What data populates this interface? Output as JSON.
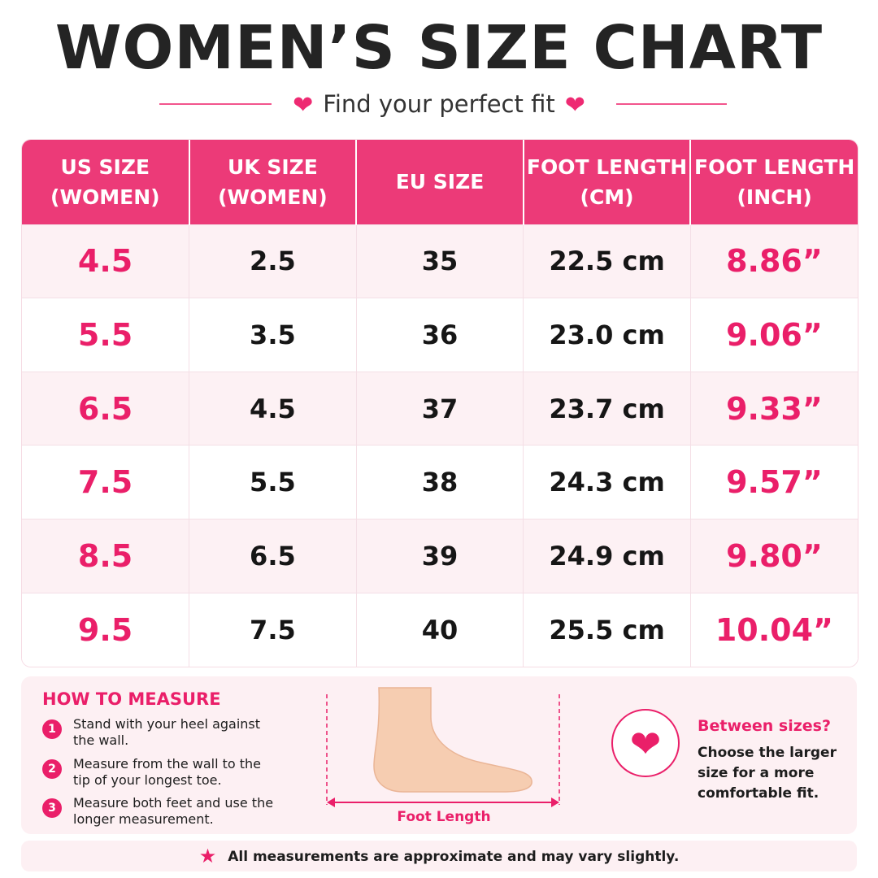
{
  "header": {
    "title": "WOMEN’S SIZE CHART",
    "subtitle": "Find your perfect fit"
  },
  "table": {
    "columns": [
      [
        "US SIZE",
        "(WOMEN)"
      ],
      [
        "UK SIZE",
        "(WOMEN)"
      ],
      [
        "EU SIZE",
        ""
      ],
      [
        "FOOT LENGTH",
        "(CM)"
      ],
      [
        "FOOT LENGTH",
        "(INCH)"
      ]
    ],
    "rows": [
      [
        "4.5",
        "2.5",
        "35",
        "22.5 cm",
        "8.86”"
      ],
      [
        "5.5",
        "3.5",
        "36",
        "23.0 cm",
        "9.06”"
      ],
      [
        "6.5",
        "4.5",
        "37",
        "23.7 cm",
        "9.33”"
      ],
      [
        "7.5",
        "5.5",
        "38",
        "24.3 cm",
        "9.57”"
      ],
      [
        "8.5",
        "6.5",
        "39",
        "24.9 cm",
        "9.80”"
      ],
      [
        "9.5",
        "7.5",
        "40",
        "25.5 cm",
        "10.04”"
      ]
    ]
  },
  "how_to_measure": {
    "title": "HOW TO MEASURE",
    "steps": [
      {
        "num": "1",
        "text": "Stand with your heel against the wall."
      },
      {
        "num": "2",
        "text": "Measure from the wall to the tip of your longest toe."
      },
      {
        "num": "3",
        "text": "Measure both feet and use the longer measurement."
      }
    ],
    "foot_label": "Foot Length"
  },
  "between_sizes": {
    "title": "Between sizes?",
    "text": "Choose the larger size for a more comfortable fit."
  },
  "note": "All measurements are approximate and may vary slightly.",
  "colors": {
    "accent": "#ea1f69",
    "header_bg": "#ec3a78",
    "row_tint": "#fdf1f4",
    "skin": "#f6cdb1"
  },
  "icons": {
    "heart": "heart-icon",
    "star": "star-icon",
    "foot": "foot-illustration"
  }
}
